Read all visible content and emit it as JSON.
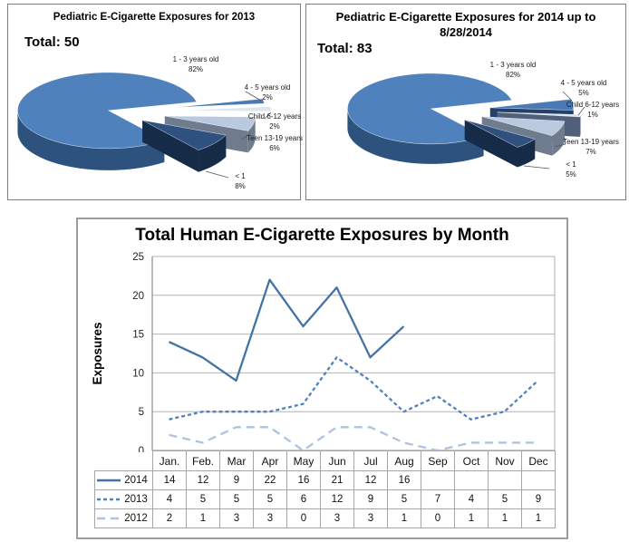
{
  "chart_data": [
    {
      "type": "pie",
      "title": "Pediatric E-Cigarette Exposures for 2013",
      "total_label": "Total: 50",
      "total": 50,
      "slices": [
        {
          "label": "1 - 3 years old",
          "pct": 82,
          "pct_label": "82%",
          "color": "#4f81bd",
          "wall": "#2e527e"
        },
        {
          "label": "4 - 5 years old",
          "pct": 2,
          "pct_label": "2%",
          "color": "#4a7ab5",
          "wall": "#24406b"
        },
        {
          "label": "Child 6-12 years",
          "pct": 2,
          "pct_label": "2%",
          "color": "#dce6f1",
          "wall": "#51607a"
        },
        {
          "label": "Teen 13-19 years",
          "pct": 6,
          "pct_label": "6%",
          "color": "#b9c9e0",
          "wall": "#6f7c8e"
        },
        {
          "label": "< 1",
          "pct": 8,
          "pct_label": "8%",
          "color": "#2f5180",
          "wall": "#152b47"
        }
      ]
    },
    {
      "type": "pie",
      "title": "Pediatric E-Cigarette Exposures for 2014 up to 8/28/2014",
      "total_label": "Total: 83",
      "total": 83,
      "slices": [
        {
          "label": "1 - 3 years old",
          "pct": 82,
          "pct_label": "82%",
          "color": "#4f81bd",
          "wall": "#2e527e"
        },
        {
          "label": "4 - 5 years old",
          "pct": 5,
          "pct_label": "5%",
          "color": "#4a7ab5",
          "wall": "#24406b"
        },
        {
          "label": "Child 6-12 years",
          "pct": 1,
          "pct_label": "1%",
          "color": "#dce6f1",
          "wall": "#51607a"
        },
        {
          "label": "Teen 13-19 years",
          "pct": 7,
          "pct_label": "7%",
          "color": "#b9c9e0",
          "wall": "#6f7c8e"
        },
        {
          "label": "< 1",
          "pct": 5,
          "pct_label": "5%",
          "color": "#2f5180",
          "wall": "#152b47"
        }
      ]
    },
    {
      "type": "line",
      "title": "Total Human E-Cigarette Exposures by Month",
      "ylabel": "Exposures",
      "ylim": [
        0,
        25
      ],
      "yticks": [
        0,
        5,
        10,
        15,
        20,
        25
      ],
      "grid": true,
      "legend_position": "table-left",
      "categories": [
        "Jan.",
        "Feb.",
        "Mar",
        "Apr",
        "May",
        "Jun",
        "Jul",
        "Aug",
        "Sep",
        "Oct",
        "Nov",
        "Dec"
      ],
      "series": [
        {
          "name": "2014",
          "values": [
            14,
            12,
            9,
            22,
            16,
            21,
            12,
            16,
            null,
            null,
            null,
            null
          ],
          "color": "#4372a6",
          "dash": "solid"
        },
        {
          "name": "2013",
          "values": [
            4,
            5,
            5,
            5,
            6,
            12,
            9,
            5,
            7,
            4,
            5,
            9
          ],
          "color": "#4f81bd",
          "dash": "short-dash"
        },
        {
          "name": "2012",
          "values": [
            2,
            1,
            3,
            3,
            0,
            3,
            3,
            1,
            0,
            1,
            1,
            1
          ],
          "color": "#afc3de",
          "dash": "long-dash"
        }
      ]
    }
  ]
}
